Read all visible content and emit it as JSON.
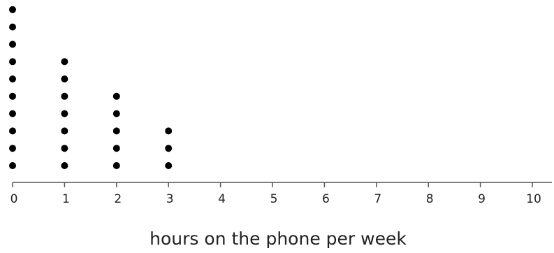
{
  "chart_data": {
    "type": "dot plot",
    "xlabel": "hours on the phone per week",
    "xlim": [
      0,
      10
    ],
    "tick_labels": [
      "0",
      "1",
      "2",
      "3",
      "4",
      "5",
      "6",
      "7",
      "8",
      "9",
      "10"
    ],
    "categories": [
      0,
      1,
      2,
      3,
      4,
      5,
      6,
      7,
      8,
      9,
      10
    ],
    "values": [
      10,
      7,
      5,
      3,
      0,
      0,
      0,
      0,
      0,
      0,
      0
    ],
    "dot_color": "#000000",
    "grid": false
  }
}
